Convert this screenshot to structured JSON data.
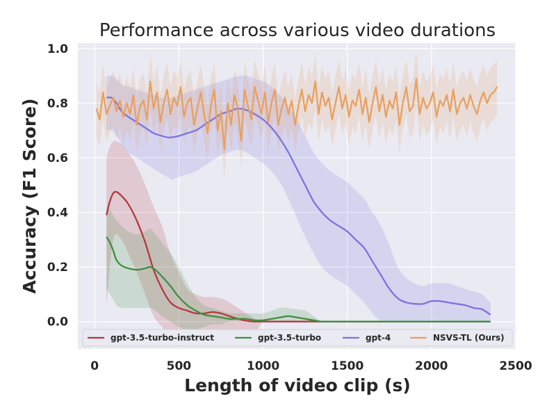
{
  "chart_data": {
    "type": "line",
    "title": "Performance across various video durations",
    "xlabel": "Length of video clip (s)",
    "ylabel": "Accuracy (F1 Score)",
    "xlim": [
      -100,
      2500
    ],
    "ylim": [
      -0.1,
      1.02
    ],
    "xticks": [
      0,
      500,
      1000,
      1500,
      2000,
      2500
    ],
    "yticks": [
      0.0,
      0.2,
      0.4,
      0.6,
      0.8,
      1.0
    ],
    "xtick_labels": [
      "0",
      "500",
      "1000",
      "1500",
      "2000",
      "2500"
    ],
    "ytick_labels": [
      "0.0",
      "0.2",
      "0.4",
      "0.6",
      "0.8",
      "1.0"
    ],
    "grid": true,
    "legend": "bottom, horizontal",
    "series": [
      {
        "name": "gpt-3.5-turbo-instruct",
        "color": "#b5383e",
        "x": [
          70,
          90,
          110,
          130,
          160,
          200,
          250,
          300,
          350,
          400,
          450,
          500,
          550,
          600,
          650,
          700,
          750,
          800,
          850,
          900,
          950,
          1000,
          1100,
          1200,
          1300,
          1400,
          1600,
          1800,
          2000,
          2200,
          2350
        ],
        "y": [
          0.39,
          0.44,
          0.47,
          0.475,
          0.46,
          0.43,
          0.37,
          0.29,
          0.19,
          0.12,
          0.07,
          0.05,
          0.04,
          0.03,
          0.03,
          0.035,
          0.03,
          0.02,
          0.01,
          0.003,
          0.0,
          0.0,
          0.0,
          0.0,
          0.0,
          0.0,
          0.0,
          0.0,
          0.0,
          0.0,
          0.0
        ],
        "lower": [
          0.05,
          0.2,
          0.3,
          0.32,
          0.3,
          0.25,
          0.18,
          0.1,
          0.02,
          -0.02,
          -0.05,
          -0.05,
          -0.05,
          -0.05,
          -0.05,
          -0.05,
          -0.05,
          -0.05,
          -0.05,
          -0.05,
          -0.05,
          0.0,
          0.0,
          0.0,
          0.0,
          0.0,
          0.0,
          0.0,
          0.0,
          0.0,
          0.0
        ],
        "upper": [
          0.6,
          0.64,
          0.66,
          0.66,
          0.65,
          0.62,
          0.57,
          0.5,
          0.42,
          0.35,
          0.25,
          0.18,
          0.12,
          0.1,
          0.09,
          0.09,
          0.085,
          0.07,
          0.05,
          0.03,
          0.01,
          0.0,
          0.0,
          0.0,
          0.0,
          0.0,
          0.0,
          0.0,
          0.0,
          0.0,
          0.0
        ]
      },
      {
        "name": "gpt-3.5-turbo",
        "color": "#3f8f3f",
        "x": [
          70,
          90,
          110,
          130,
          160,
          200,
          250,
          300,
          330,
          360,
          400,
          450,
          500,
          550,
          600,
          650,
          700,
          750,
          800,
          850,
          900,
          950,
          1000,
          1050,
          1100,
          1150,
          1200,
          1250,
          1300,
          1350,
          1400,
          1600,
          1800,
          2000,
          2200,
          2350
        ],
        "y": [
          0.31,
          0.29,
          0.26,
          0.225,
          0.205,
          0.195,
          0.19,
          0.195,
          0.2,
          0.19,
          0.165,
          0.13,
          0.09,
          0.06,
          0.04,
          0.025,
          0.02,
          0.015,
          0.01,
          0.01,
          0.01,
          0.005,
          0.005,
          0.01,
          0.015,
          0.02,
          0.015,
          0.01,
          0.005,
          0.0,
          0.0,
          0.0,
          0.0,
          0.0,
          0.0,
          0.0
        ],
        "lower": [
          0.12,
          0.1,
          0.08,
          0.06,
          0.05,
          0.05,
          0.05,
          0.05,
          0.05,
          0.04,
          0.02,
          0.0,
          -0.02,
          -0.03,
          -0.03,
          -0.02,
          -0.01,
          -0.01,
          0.0,
          0.0,
          0.0,
          0.0,
          0.0,
          0.0,
          0.0,
          0.0,
          0.0,
          0.0,
          0.0,
          0.0,
          0.0,
          0.0,
          0.0,
          0.0,
          0.0,
          0.0
        ],
        "upper": [
          0.42,
          0.41,
          0.39,
          0.37,
          0.35,
          0.33,
          0.32,
          0.33,
          0.34,
          0.32,
          0.29,
          0.25,
          0.2,
          0.14,
          0.09,
          0.06,
          0.05,
          0.04,
          0.03,
          0.03,
          0.03,
          0.03,
          0.03,
          0.04,
          0.05,
          0.05,
          0.045,
          0.04,
          0.02,
          0.0,
          0.0,
          0.0,
          0.0,
          0.0,
          0.0,
          0.0
        ]
      },
      {
        "name": "gpt-4",
        "color": "#7b73e0",
        "x": [
          70,
          100,
          130,
          160,
          200,
          250,
          300,
          350,
          400,
          430,
          460,
          500,
          550,
          600,
          650,
          700,
          750,
          800,
          850,
          900,
          950,
          1000,
          1050,
          1100,
          1150,
          1200,
          1250,
          1300,
          1350,
          1400,
          1450,
          1500,
          1550,
          1600,
          1650,
          1700,
          1750,
          1800,
          1850,
          1900,
          1950,
          2000,
          2050,
          2100,
          2150,
          2200,
          2250,
          2300,
          2350
        ],
        "y": [
          0.82,
          0.82,
          0.8,
          0.77,
          0.75,
          0.73,
          0.71,
          0.69,
          0.68,
          0.675,
          0.675,
          0.68,
          0.69,
          0.7,
          0.72,
          0.74,
          0.76,
          0.77,
          0.78,
          0.775,
          0.76,
          0.74,
          0.71,
          0.67,
          0.62,
          0.56,
          0.5,
          0.44,
          0.4,
          0.37,
          0.35,
          0.33,
          0.3,
          0.27,
          0.22,
          0.17,
          0.12,
          0.085,
          0.07,
          0.065,
          0.065,
          0.075,
          0.075,
          0.07,
          0.065,
          0.06,
          0.05,
          0.045,
          0.025
        ],
        "lower": [
          0.7,
          0.7,
          0.68,
          0.65,
          0.62,
          0.6,
          0.58,
          0.56,
          0.54,
          0.53,
          0.52,
          0.53,
          0.54,
          0.55,
          0.57,
          0.59,
          0.61,
          0.62,
          0.63,
          0.62,
          0.6,
          0.58,
          0.55,
          0.51,
          0.45,
          0.38,
          0.31,
          0.25,
          0.2,
          0.17,
          0.15,
          0.13,
          0.1,
          0.07,
          0.03,
          0.0,
          0.0,
          0.0,
          0.0,
          0.0,
          0.0,
          0.0,
          0.0,
          0.0,
          0.0,
          0.0,
          0.0,
          0.0,
          0.0
        ],
        "upper": [
          0.9,
          0.9,
          0.89,
          0.87,
          0.86,
          0.85,
          0.84,
          0.83,
          0.82,
          0.82,
          0.82,
          0.83,
          0.84,
          0.85,
          0.86,
          0.87,
          0.88,
          0.89,
          0.9,
          0.9,
          0.89,
          0.88,
          0.86,
          0.83,
          0.79,
          0.74,
          0.68,
          0.62,
          0.58,
          0.55,
          0.53,
          0.51,
          0.48,
          0.45,
          0.4,
          0.35,
          0.28,
          0.2,
          0.16,
          0.14,
          0.13,
          0.14,
          0.14,
          0.14,
          0.13,
          0.12,
          0.11,
          0.1,
          0.07
        ]
      },
      {
        "name": "NSVS-TL (Ours)",
        "color": "#e8a060",
        "x": [
          10,
          30,
          50,
          70,
          90,
          110,
          130,
          150,
          170,
          190,
          210,
          230,
          250,
          270,
          290,
          310,
          330,
          350,
          370,
          390,
          410,
          430,
          450,
          470,
          490,
          510,
          530,
          550,
          570,
          590,
          610,
          630,
          650,
          670,
          690,
          710,
          730,
          750,
          770,
          790,
          810,
          830,
          850,
          870,
          890,
          910,
          930,
          950,
          970,
          990,
          1010,
          1030,
          1050,
          1070,
          1090,
          1110,
          1130,
          1150,
          1170,
          1190,
          1210,
          1230,
          1250,
          1270,
          1290,
          1310,
          1330,
          1350,
          1370,
          1390,
          1410,
          1430,
          1450,
          1470,
          1490,
          1510,
          1530,
          1550,
          1570,
          1590,
          1610,
          1630,
          1650,
          1670,
          1690,
          1710,
          1730,
          1750,
          1770,
          1790,
          1810,
          1830,
          1850,
          1870,
          1890,
          1910,
          1930,
          1950,
          1970,
          1990,
          2010,
          2030,
          2050,
          2070,
          2090,
          2110,
          2130,
          2150,
          2170,
          2190,
          2210,
          2230,
          2250,
          2270,
          2290,
          2310,
          2330,
          2350,
          2370,
          2390
        ],
        "y": [
          0.78,
          0.74,
          0.84,
          0.76,
          0.79,
          0.82,
          0.77,
          0.81,
          0.75,
          0.8,
          0.76,
          0.83,
          0.72,
          0.79,
          0.81,
          0.74,
          0.88,
          0.78,
          0.84,
          0.73,
          0.8,
          0.85,
          0.76,
          0.82,
          0.79,
          0.86,
          0.75,
          0.8,
          0.82,
          0.72,
          0.78,
          0.84,
          0.76,
          0.69,
          0.79,
          0.85,
          0.7,
          0.77,
          0.63,
          0.8,
          0.72,
          0.83,
          0.78,
          0.66,
          0.85,
          0.79,
          0.74,
          0.86,
          0.81,
          0.76,
          0.84,
          0.73,
          0.8,
          0.85,
          0.72,
          0.78,
          0.82,
          0.76,
          0.81,
          0.72,
          0.79,
          0.85,
          0.77,
          0.83,
          0.8,
          0.88,
          0.76,
          0.84,
          0.79,
          0.82,
          0.74,
          0.8,
          0.86,
          0.78,
          0.83,
          0.75,
          0.81,
          0.79,
          0.85,
          0.76,
          0.82,
          0.73,
          0.8,
          0.86,
          0.77,
          0.83,
          0.75,
          0.81,
          0.78,
          0.84,
          0.72,
          0.8,
          0.86,
          0.77,
          0.79,
          0.89,
          0.76,
          0.82,
          0.78,
          0.8,
          0.84,
          0.75,
          0.81,
          0.79,
          0.83,
          0.77,
          0.85,
          0.76,
          0.8,
          0.82,
          0.78,
          0.83,
          0.79,
          0.76,
          0.81,
          0.84,
          0.8,
          0.83,
          0.84,
          0.86
        ],
        "band": 0.1
      }
    ]
  }
}
